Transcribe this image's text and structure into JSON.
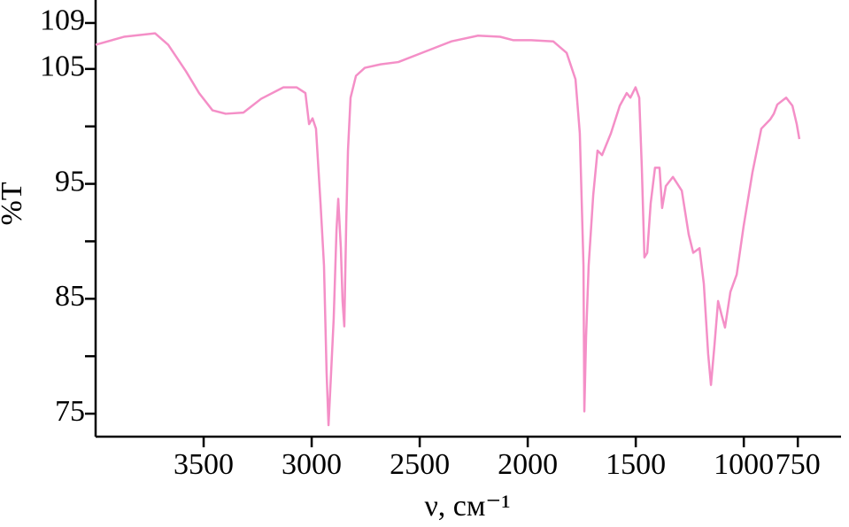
{
  "chart_data": {
    "type": "line",
    "xlabel": "ν, см⁻¹",
    "ylabel": "%T",
    "xlim": [
      4000,
      550
    ],
    "xticks": [
      3500,
      3000,
      2500,
      2000,
      1500,
      1000,
      750
    ],
    "ylim": [
      73,
      111
    ],
    "yticks": [
      109,
      105,
      95,
      85,
      75
    ],
    "yminorticks": [
      100,
      90,
      80
    ],
    "series": [
      {
        "color": "#f48fc7",
        "x": [
          4000,
          3869,
          3725,
          3664,
          3582,
          3521,
          3459,
          3398,
          3316,
          3234,
          3131,
          3070,
          3029,
          3012,
          2996,
          2980,
          2959,
          2943,
          2931,
          2922,
          2910,
          2898,
          2885,
          2877,
          2865,
          2857,
          2849,
          2840,
          2832,
          2820,
          2795,
          2754,
          2681,
          2599,
          2476,
          2353,
          2230,
          2128,
          2066,
          1984,
          1882,
          1820,
          1779,
          1759,
          1742,
          1738,
          1730,
          1718,
          1697,
          1677,
          1656,
          1615,
          1574,
          1542,
          1525,
          1501,
          1484,
          1472,
          1460,
          1447,
          1431,
          1411,
          1390,
          1378,
          1361,
          1328,
          1287,
          1255,
          1234,
          1205,
          1185,
          1165,
          1152,
          1136,
          1119,
          1103,
          1087,
          1062,
          1033,
          1001,
          960,
          919,
          878,
          861,
          845,
          804,
          775,
          755,
          743
        ],
        "values": [
          107.1,
          107.8,
          108.1,
          107.1,
          104.8,
          102.9,
          101.4,
          101.1,
          101.2,
          102.4,
          103.4,
          103.4,
          102.9,
          100.2,
          100.7,
          99.8,
          93.3,
          87.9,
          78.6,
          74.0,
          78.6,
          83.3,
          91.0,
          93.7,
          89.4,
          84.8,
          82.6,
          91.7,
          97.9,
          102.5,
          104.4,
          105.1,
          105.4,
          105.6,
          106.5,
          107.4,
          107.9,
          107.8,
          107.5,
          107.5,
          107.4,
          106.4,
          104.1,
          99.4,
          87.9,
          75.2,
          81.7,
          87.9,
          94.0,
          97.9,
          97.5,
          99.4,
          101.8,
          102.9,
          102.5,
          103.4,
          102.5,
          96.4,
          88.6,
          89.0,
          93.3,
          96.4,
          96.4,
          92.9,
          94.8,
          95.6,
          94.4,
          90.6,
          89.0,
          89.4,
          86.3,
          80.2,
          77.5,
          80.9,
          84.8,
          83.6,
          82.5,
          85.6,
          87.1,
          91.3,
          96.0,
          99.8,
          100.6,
          101.1,
          101.9,
          102.5,
          101.8,
          100.2,
          98.9
        ]
      }
    ]
  }
}
